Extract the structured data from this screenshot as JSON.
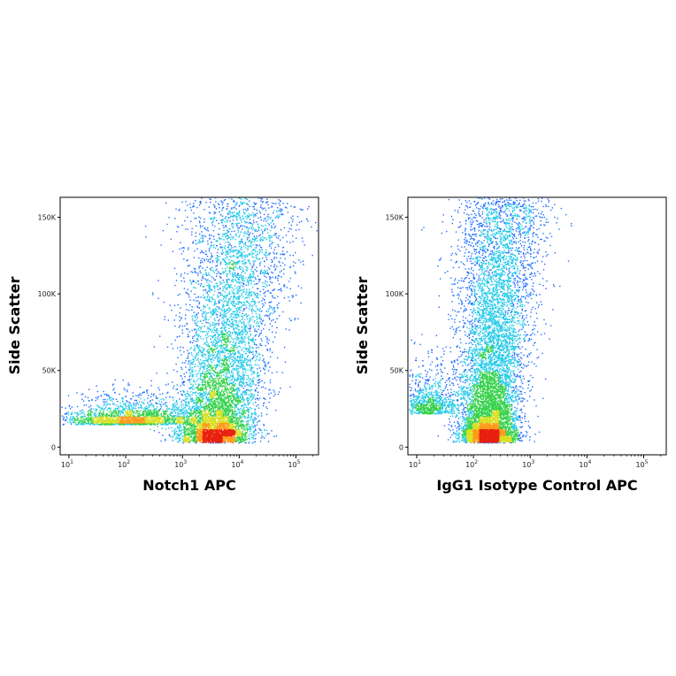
{
  "panels": [
    {
      "chart_data": {
        "type": "scatter",
        "subtype": "flow-cytometry density dot plot",
        "xlabel": "Notch1 APC",
        "ylabel": "Side Scatter",
        "xscale": "log",
        "xlim": [
          7,
          250000
        ],
        "ylim": [
          -5000,
          163000
        ],
        "xticks": [
          10,
          100,
          1000,
          10000,
          100000
        ],
        "xtick_base": "10",
        "xtick_exponents": [
          "1",
          "2",
          "3",
          "4",
          "5"
        ],
        "yticks": [
          0,
          50000,
          100000,
          150000
        ],
        "ytick_labels": [
          "0",
          "50K",
          "100K",
          "150K"
        ],
        "color_scale": "density: blue (low) → cyan → green → yellow → red (high)",
        "populations": [
          {
            "name": "main",
            "x_center_log10": 3.55,
            "x_spread_log10": 0.45,
            "y_min": 3000,
            "y_max": 160000,
            "weight": 0.78,
            "skew": "upward-right"
          },
          {
            "name": "low-shoulder",
            "x_center_log10": 2.1,
            "x_spread_log10": 0.6,
            "y_center": 15000,
            "y_spread": 10000,
            "weight": 0.22
          }
        ]
      }
    },
    {
      "chart_data": {
        "type": "scatter",
        "subtype": "flow-cytometry density dot plot",
        "xlabel": "IgG1 Isotype Control APC",
        "ylabel": "Side Scatter",
        "xscale": "log",
        "xlim": [
          7,
          250000
        ],
        "ylim": [
          -5000,
          163000
        ],
        "xticks": [
          10,
          100,
          1000,
          10000,
          100000
        ],
        "xtick_base": "10",
        "xtick_exponents": [
          "1",
          "2",
          "3",
          "4",
          "5"
        ],
        "yticks": [
          0,
          50000,
          100000,
          150000
        ],
        "ytick_labels": [
          "0",
          "50K",
          "100K",
          "150K"
        ],
        "color_scale": "density: blue (low) → cyan → green → yellow → red (high)",
        "populations": [
          {
            "name": "main",
            "x_center_log10": 2.25,
            "x_spread_log10": 0.35,
            "y_min": 3000,
            "y_max": 160000,
            "weight": 0.9,
            "skew": "upward"
          },
          {
            "name": "left-edge",
            "x_center_log10": 1.2,
            "x_spread_log10": 0.25,
            "y_center": 22000,
            "y_spread": 18000,
            "weight": 0.1
          }
        ]
      }
    }
  ]
}
